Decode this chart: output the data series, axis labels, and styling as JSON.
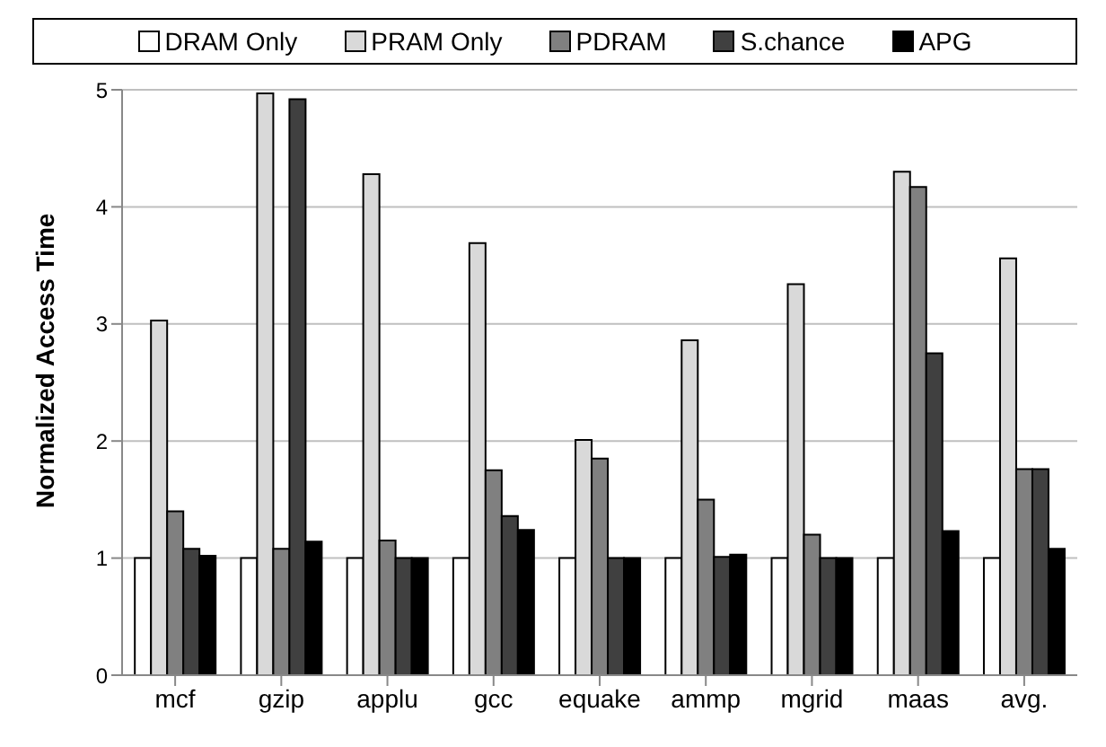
{
  "chart_data": {
    "type": "bar",
    "ylabel": "Normalized Access Time",
    "categories": [
      "mcf",
      "gzip",
      "applu",
      "gcc",
      "equake",
      "ammp",
      "mgrid",
      "maas",
      "avg."
    ],
    "series": [
      {
        "name": "DRAM Only",
        "color": "#ffffff",
        "values": [
          1,
          1,
          1,
          1,
          1,
          1,
          1,
          1,
          1
        ]
      },
      {
        "name": "PRAM Only",
        "color": "#d9d9d9",
        "values": [
          3.03,
          4.97,
          4.28,
          3.69,
          2.01,
          2.86,
          3.34,
          4.3,
          3.56
        ]
      },
      {
        "name": "PDRAM",
        "color": "#808080",
        "values": [
          1.4,
          1.08,
          1.15,
          1.75,
          1.85,
          1.5,
          1.2,
          4.17,
          1.76
        ]
      },
      {
        "name": "S.chance",
        "color": "#404040",
        "values": [
          1.08,
          4.92,
          1.0,
          1.36,
          1.0,
          1.01,
          1.0,
          2.75,
          1.76
        ]
      },
      {
        "name": "APG",
        "color": "#000000",
        "values": [
          1.02,
          1.14,
          1.0,
          1.24,
          1.0,
          1.03,
          1.0,
          1.23,
          1.08
        ]
      }
    ],
    "ylim": [
      0,
      5
    ],
    "yticks": [
      0,
      1,
      2,
      3,
      4,
      5
    ],
    "grid": "y",
    "legend": "top"
  }
}
